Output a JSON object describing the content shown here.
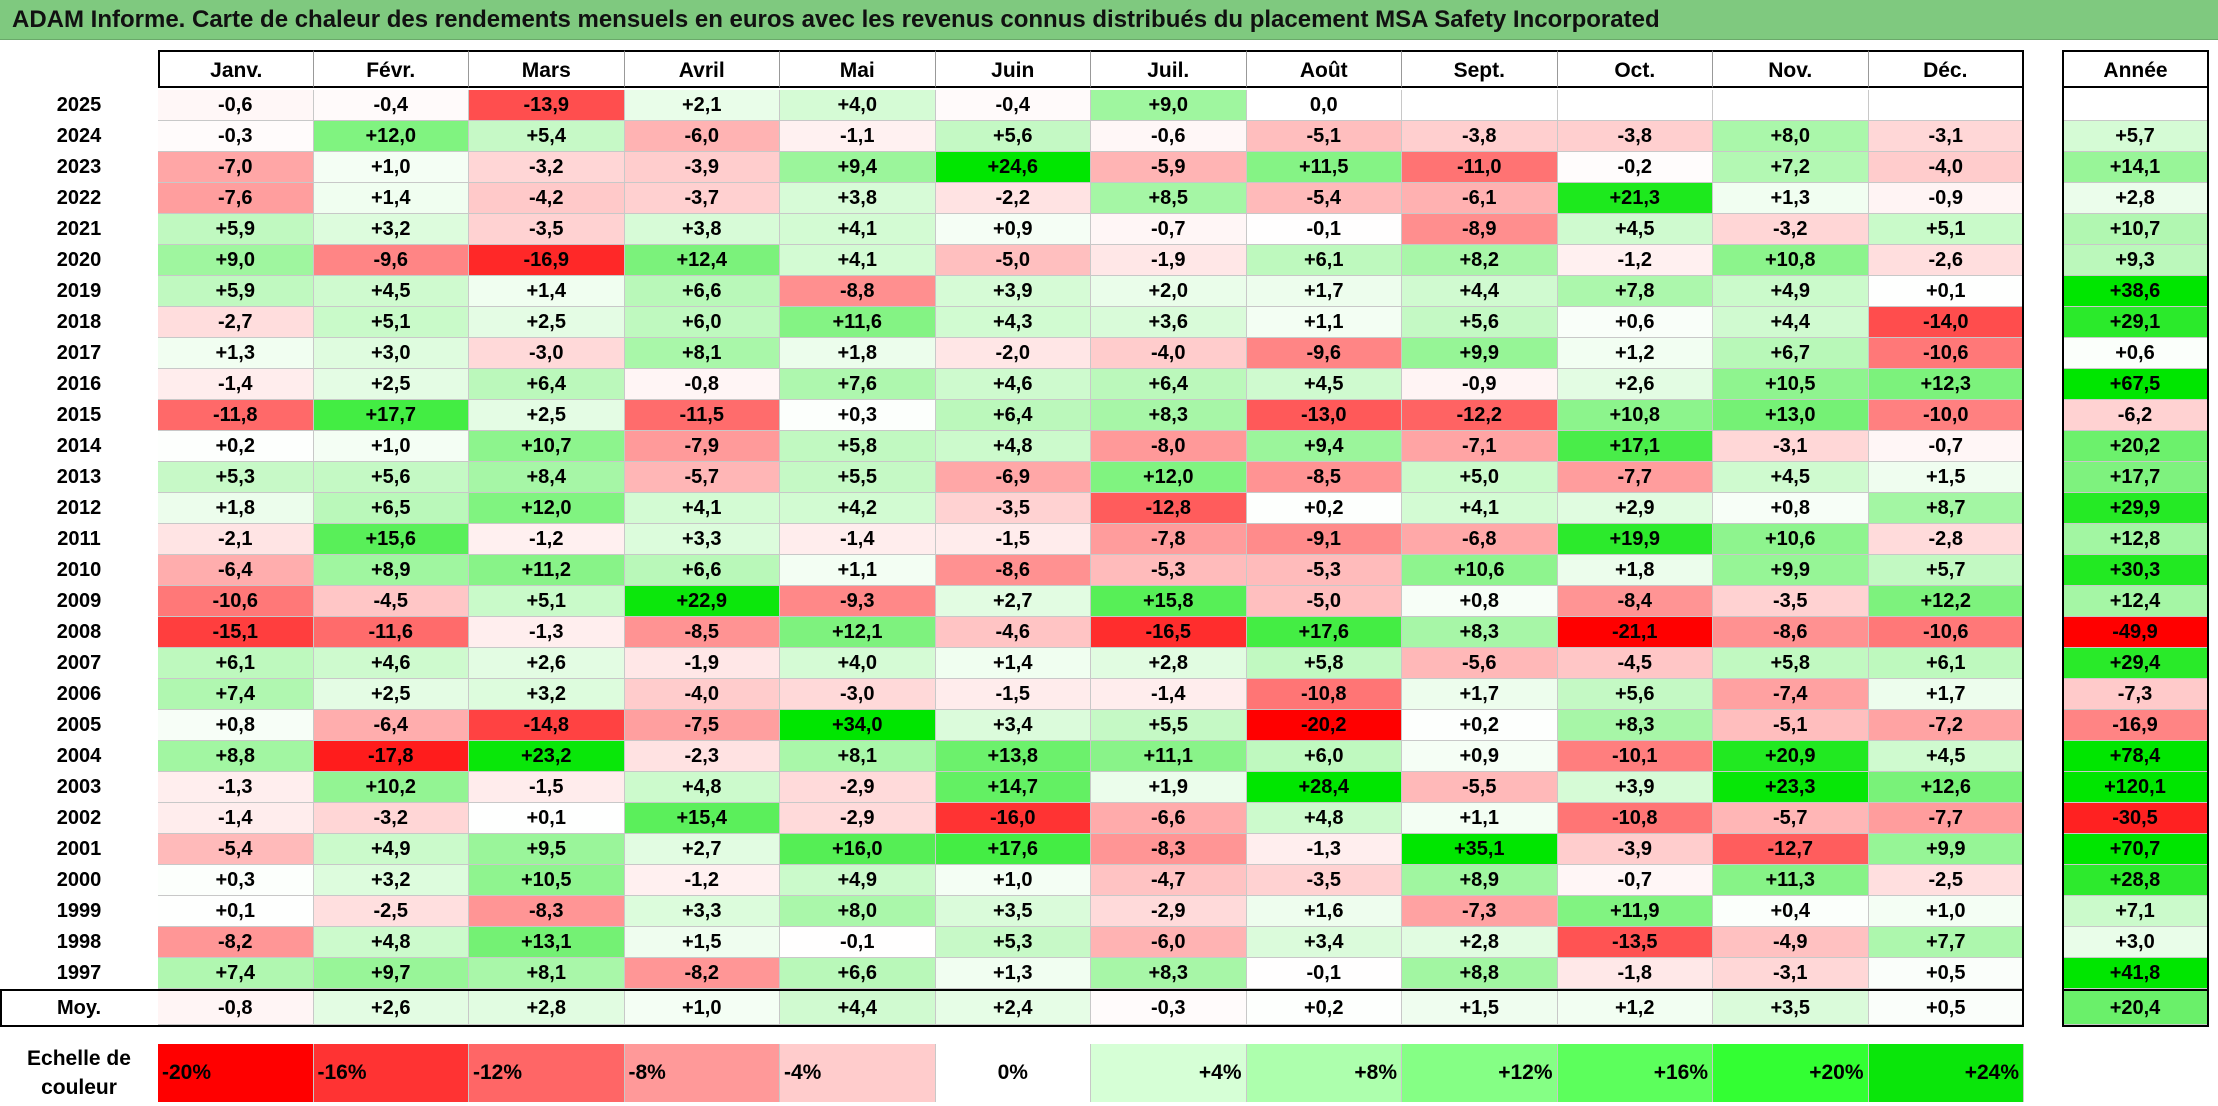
{
  "title": "ADAM Informe. Carte de chaleur des rendements mensuels en euros avec les revenus connus distribués du placement MSA Safety Incorporated",
  "chart_data": {
    "type": "heatmap",
    "title": "ADAM Informe. Carte de chaleur des rendements mensuels en euros avec les revenus connus distribués du placement MSA Safety Incorporated",
    "columns": [
      "Janv.",
      "Févr.",
      "Mars",
      "Avril",
      "Mai",
      "Juin",
      "Juil.",
      "Août",
      "Sept.",
      "Oct.",
      "Nov.",
      "Déc."
    ],
    "year_column_label": "Année",
    "rows": [
      {
        "year": "2025",
        "values": [
          "-0,6",
          "-0,4",
          "-13,9",
          "+2,1",
          "+4,0",
          "-0,4",
          "+9,0",
          "0,0",
          "",
          "",
          "",
          ""
        ],
        "annual": ""
      },
      {
        "year": "2024",
        "values": [
          "-0,3",
          "+12,0",
          "+5,4",
          "-6,0",
          "-1,1",
          "+5,6",
          "-0,6",
          "-5,1",
          "-3,8",
          "-3,8",
          "+8,0",
          "-3,1"
        ],
        "annual": "+5,7"
      },
      {
        "year": "2023",
        "values": [
          "-7,0",
          "+1,0",
          "-3,2",
          "-3,9",
          "+9,4",
          "+24,6",
          "-5,9",
          "+11,5",
          "-11,0",
          "-0,2",
          "+7,2",
          "-4,0"
        ],
        "annual": "+14,1"
      },
      {
        "year": "2022",
        "values": [
          "-7,6",
          "+1,4",
          "-4,2",
          "-3,7",
          "+3,8",
          "-2,2",
          "+8,5",
          "-5,4",
          "-6,1",
          "+21,3",
          "+1,3",
          "-0,9"
        ],
        "annual": "+2,8"
      },
      {
        "year": "2021",
        "values": [
          "+5,9",
          "+3,2",
          "-3,5",
          "+3,8",
          "+4,1",
          "+0,9",
          "-0,7",
          "-0,1",
          "-8,9",
          "+4,5",
          "-3,2",
          "+5,1"
        ],
        "annual": "+10,7"
      },
      {
        "year": "2020",
        "values": [
          "+9,0",
          "-9,6",
          "-16,9",
          "+12,4",
          "+4,1",
          "-5,0",
          "-1,9",
          "+6,1",
          "+8,2",
          "-1,2",
          "+10,8",
          "-2,6"
        ],
        "annual": "+9,3"
      },
      {
        "year": "2019",
        "values": [
          "+5,9",
          "+4,5",
          "+1,4",
          "+6,6",
          "-8,8",
          "+3,9",
          "+2,0",
          "+1,7",
          "+4,4",
          "+7,8",
          "+4,9",
          "+0,1"
        ],
        "annual": "+38,6"
      },
      {
        "year": "2018",
        "values": [
          "-2,7",
          "+5,1",
          "+2,5",
          "+6,0",
          "+11,6",
          "+4,3",
          "+3,6",
          "+1,1",
          "+5,6",
          "+0,6",
          "+4,4",
          "-14,0"
        ],
        "annual": "+29,1"
      },
      {
        "year": "2017",
        "values": [
          "+1,3",
          "+3,0",
          "-3,0",
          "+8,1",
          "+1,8",
          "-2,0",
          "-4,0",
          "-9,6",
          "+9,9",
          "+1,2",
          "+6,7",
          "-10,6"
        ],
        "annual": "+0,6"
      },
      {
        "year": "2016",
        "values": [
          "-1,4",
          "+2,5",
          "+6,4",
          "-0,8",
          "+7,6",
          "+4,6",
          "+6,4",
          "+4,5",
          "-0,9",
          "+2,6",
          "+10,5",
          "+12,3"
        ],
        "annual": "+67,5"
      },
      {
        "year": "2015",
        "values": [
          "-11,8",
          "+17,7",
          "+2,5",
          "-11,5",
          "+0,3",
          "+6,4",
          "+8,3",
          "-13,0",
          "-12,2",
          "+10,8",
          "+13,0",
          "-10,0"
        ],
        "annual": "-6,2"
      },
      {
        "year": "2014",
        "values": [
          "+0,2",
          "+1,0",
          "+10,7",
          "-7,9",
          "+5,8",
          "+4,8",
          "-8,0",
          "+9,4",
          "-7,1",
          "+17,1",
          "-3,1",
          "-0,7"
        ],
        "annual": "+20,2"
      },
      {
        "year": "2013",
        "values": [
          "+5,3",
          "+5,6",
          "+8,4",
          "-5,7",
          "+5,5",
          "-6,9",
          "+12,0",
          "-8,5",
          "+5,0",
          "-7,7",
          "+4,5",
          "+1,5"
        ],
        "annual": "+17,7"
      },
      {
        "year": "2012",
        "values": [
          "+1,8",
          "+6,5",
          "+12,0",
          "+4,1",
          "+4,2",
          "-3,5",
          "-12,8",
          "+0,2",
          "+4,1",
          "+2,9",
          "+0,8",
          "+8,7"
        ],
        "annual": "+29,9"
      },
      {
        "year": "2011",
        "values": [
          "-2,1",
          "+15,6",
          "-1,2",
          "+3,3",
          "-1,4",
          "-1,5",
          "-7,8",
          "-9,1",
          "-6,8",
          "+19,9",
          "+10,6",
          "-2,8"
        ],
        "annual": "+12,8"
      },
      {
        "year": "2010",
        "values": [
          "-6,4",
          "+8,9",
          "+11,2",
          "+6,6",
          "+1,1",
          "-8,6",
          "-5,3",
          "-5,3",
          "+10,6",
          "+1,8",
          "+9,9",
          "+5,7"
        ],
        "annual": "+30,3"
      },
      {
        "year": "2009",
        "values": [
          "-10,6",
          "-4,5",
          "+5,1",
          "+22,9",
          "-9,3",
          "+2,7",
          "+15,8",
          "-5,0",
          "+0,8",
          "-8,4",
          "-3,5",
          "+12,2"
        ],
        "annual": "+12,4"
      },
      {
        "year": "2008",
        "values": [
          "-15,1",
          "-11,6",
          "-1,3",
          "-8,5",
          "+12,1",
          "-4,6",
          "-16,5",
          "+17,6",
          "+8,3",
          "-21,1",
          "-8,6",
          "-10,6"
        ],
        "annual": "-49,9"
      },
      {
        "year": "2007",
        "values": [
          "+6,1",
          "+4,6",
          "+2,6",
          "-1,9",
          "+4,0",
          "+1,4",
          "+2,8",
          "+5,8",
          "-5,6",
          "-4,5",
          "+5,8",
          "+6,1"
        ],
        "annual": "+29,4"
      },
      {
        "year": "2006",
        "values": [
          "+7,4",
          "+2,5",
          "+3,2",
          "-4,0",
          "-3,0",
          "-1,5",
          "-1,4",
          "-10,8",
          "+1,7",
          "+5,6",
          "-7,4",
          "+1,7"
        ],
        "annual": "-7,3"
      },
      {
        "year": "2005",
        "values": [
          "+0,8",
          "-6,4",
          "-14,8",
          "-7,5",
          "+34,0",
          "+3,4",
          "+5,5",
          "-20,2",
          "+0,2",
          "+8,3",
          "-5,1",
          "-7,2"
        ],
        "annual": "-16,9"
      },
      {
        "year": "2004",
        "values": [
          "+8,8",
          "-17,8",
          "+23,2",
          "-2,3",
          "+8,1",
          "+13,8",
          "+11,1",
          "+6,0",
          "+0,9",
          "-10,1",
          "+20,9",
          "+4,5"
        ],
        "annual": "+78,4"
      },
      {
        "year": "2003",
        "values": [
          "-1,3",
          "+10,2",
          "-1,5",
          "+4,8",
          "-2,9",
          "+14,7",
          "+1,9",
          "+28,4",
          "-5,5",
          "+3,9",
          "+23,3",
          "+12,6"
        ],
        "annual": "+120,1"
      },
      {
        "year": "2002",
        "values": [
          "-1,4",
          "-3,2",
          "+0,1",
          "+15,4",
          "-2,9",
          "-16,0",
          "-6,6",
          "+4,8",
          "+1,1",
          "-10,8",
          "-5,7",
          "-7,7"
        ],
        "annual": "-30,5"
      },
      {
        "year": "2001",
        "values": [
          "-5,4",
          "+4,9",
          "+9,5",
          "+2,7",
          "+16,0",
          "+17,6",
          "-8,3",
          "-1,3",
          "+35,1",
          "-3,9",
          "-12,7",
          "+9,9"
        ],
        "annual": "+70,7"
      },
      {
        "year": "2000",
        "values": [
          "+0,3",
          "+3,2",
          "+10,5",
          "-1,2",
          "+4,9",
          "+1,0",
          "-4,7",
          "-3,5",
          "+8,9",
          "-0,7",
          "+11,3",
          "-2,5"
        ],
        "annual": "+28,8"
      },
      {
        "year": "1999",
        "values": [
          "+0,1",
          "-2,5",
          "-8,3",
          "+3,3",
          "+8,0",
          "+3,5",
          "-2,9",
          "+1,6",
          "-7,3",
          "+11,9",
          "+0,4",
          "+1,0"
        ],
        "annual": "+7,1"
      },
      {
        "year": "1998",
        "values": [
          "-8,2",
          "+4,8",
          "+13,1",
          "+1,5",
          "-0,1",
          "+5,3",
          "-6,0",
          "+3,4",
          "+2,8",
          "-13,5",
          "-4,9",
          "+7,7"
        ],
        "annual": "+3,0"
      },
      {
        "year": "1997",
        "values": [
          "+7,4",
          "+9,7",
          "+8,1",
          "-8,2",
          "+6,6",
          "+1,3",
          "+8,3",
          "-0,1",
          "+8,8",
          "-1,8",
          "-3,1",
          "+0,5"
        ],
        "annual": "+41,8"
      }
    ],
    "average": {
      "label": "Moy.",
      "values": [
        "-0,8",
        "+2,6",
        "+2,8",
        "+1,0",
        "+4,4",
        "+2,4",
        "-0,3",
        "+0,2",
        "+1,5",
        "+1,2",
        "+3,5",
        "+0,5"
      ],
      "annual": "+20,4"
    },
    "scale": {
      "label": "Echelle de couleur",
      "steps": [
        {
          "label": "-20%",
          "value": -20,
          "color": "#ff0000"
        },
        {
          "label": "-16%",
          "value": -16,
          "color": "#ff3333"
        },
        {
          "label": "-12%",
          "value": -12,
          "color": "#ff6666"
        },
        {
          "label": "-8%",
          "value": -8,
          "color": "#ff9999"
        },
        {
          "label": "-4%",
          "value": -4,
          "color": "#ffcccc"
        },
        {
          "label": "0%",
          "value": 0,
          "color": "#ffffff"
        },
        {
          "label": "+4%",
          "value": 4,
          "color": "#d6ffd6"
        },
        {
          "label": "+8%",
          "value": 8,
          "color": "#adffad"
        },
        {
          "label": "+12%",
          "value": 12,
          "color": "#85ff85"
        },
        {
          "label": "+16%",
          "value": 16,
          "color": "#5cff5c"
        },
        {
          "label": "+20%",
          "value": 20,
          "color": "#33ff33"
        },
        {
          "label": "+24%",
          "value": 24,
          "color": "#0ae60a"
        }
      ]
    },
    "colors": {
      "negative_max": "#ff0000",
      "neutral": "#ffffff",
      "positive_max": "#00e600",
      "title_bar": "#7fc97f"
    }
  }
}
